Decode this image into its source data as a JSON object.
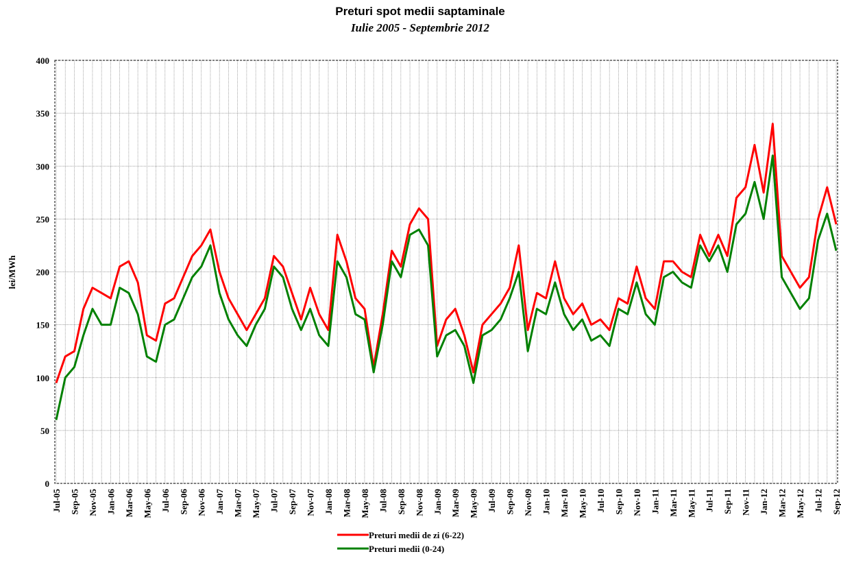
{
  "chart_data": {
    "type": "line",
    "title": "Preturi spot medii saptaminale",
    "subtitle": "Iulie 2005 - Septembrie 2012",
    "y_label": "lei/MWh",
    "categories": [
      "Jul-05",
      null,
      "Sep-05",
      null,
      "Nov-05",
      null,
      "Jan-06",
      null,
      "Mar-06",
      null,
      "May-06",
      null,
      "Jul-06",
      null,
      "Sep-06",
      null,
      "Nov-06",
      null,
      "Jan-07",
      null,
      "Mar-07",
      null,
      "May-07",
      null,
      "Jul-07",
      null,
      "Sep-07",
      null,
      "Nov-07",
      null,
      "Jan-08",
      null,
      "Mar-08",
      null,
      "May-08",
      null,
      "Jul-08",
      null,
      "Sep-08",
      null,
      "Nov-08",
      null,
      "Jan-09",
      null,
      "Mar-09",
      null,
      "May-09",
      null,
      "Jul-09",
      null,
      "Sep-09",
      null,
      "Nov-09",
      null,
      "Jan-10",
      null,
      "Mar-10",
      null,
      "May-10",
      null,
      "Jul-10",
      null,
      "Sep-10",
      null,
      "Nov-10",
      null,
      "Jan-11",
      null,
      "Mar-11",
      null,
      "May-11",
      null,
      "Jul-11",
      null,
      "Sep-11",
      null,
      "Nov-11",
      null,
      "Jan-12",
      null,
      "Mar-12",
      null,
      "May-12",
      null,
      "Jul-12",
      null,
      "Sep-12"
    ],
    "series": [
      {
        "name": "Preturi medii de zi (6-22)",
        "color": "#ff0000",
        "values": [
          95,
          120,
          125,
          165,
          185,
          180,
          175,
          205,
          210,
          190,
          140,
          135,
          170,
          175,
          195,
          215,
          225,
          240,
          200,
          175,
          160,
          145,
          160,
          175,
          215,
          205,
          180,
          155,
          185,
          160,
          145,
          235,
          210,
          175,
          165,
          110,
          160,
          220,
          205,
          245,
          260,
          250,
          130,
          155,
          165,
          140,
          105,
          150,
          160,
          170,
          185,
          225,
          145,
          180,
          175,
          210,
          175,
          160,
          170,
          150,
          155,
          145,
          175,
          170,
          205,
          175,
          165,
          210,
          210,
          200,
          195,
          235,
          215,
          235,
          215,
          270,
          280,
          320,
          275,
          340,
          215,
          200,
          185,
          195,
          250,
          280,
          245
        ]
      },
      {
        "name": "Preturi medii (0-24)",
        "color": "#008000",
        "values": [
          60,
          100,
          110,
          140,
          165,
          150,
          150,
          185,
          180,
          160,
          120,
          115,
          150,
          155,
          175,
          195,
          205,
          225,
          180,
          155,
          140,
          130,
          150,
          165,
          205,
          195,
          165,
          145,
          165,
          140,
          130,
          210,
          195,
          160,
          155,
          105,
          150,
          210,
          195,
          235,
          240,
          225,
          120,
          140,
          145,
          130,
          95,
          140,
          145,
          155,
          175,
          200,
          125,
          165,
          160,
          190,
          160,
          145,
          155,
          135,
          140,
          130,
          165,
          160,
          190,
          160,
          150,
          195,
          200,
          190,
          185,
          225,
          210,
          225,
          200,
          245,
          255,
          285,
          250,
          310,
          195,
          180,
          165,
          175,
          230,
          255,
          220
        ]
      }
    ],
    "ylim": [
      0,
      400
    ],
    "yticks": [
      0,
      50,
      100,
      150,
      200,
      250,
      300,
      350,
      400
    ],
    "grid": true
  }
}
